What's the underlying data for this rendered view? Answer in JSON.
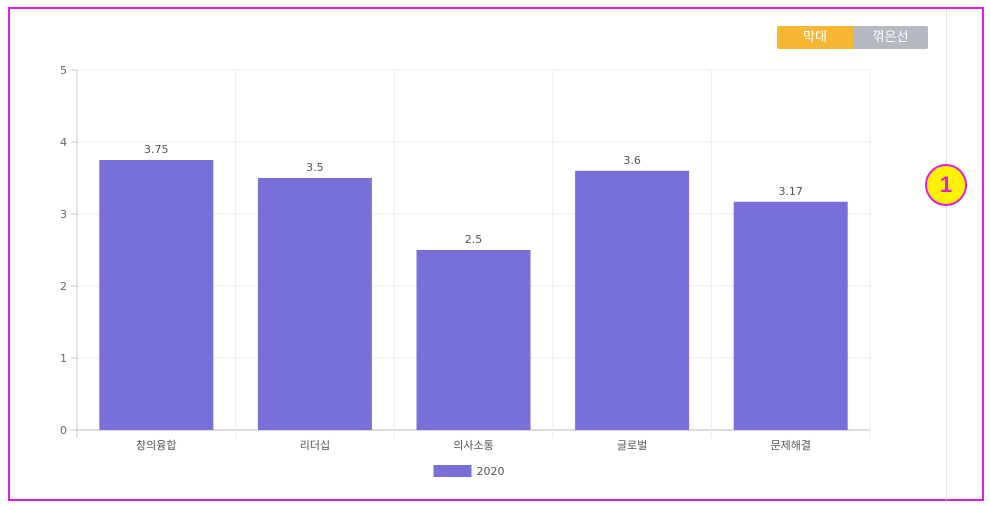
{
  "toggle": {
    "bar_label": "막대",
    "line_label": "꺾은선",
    "active": "bar"
  },
  "annotation_marker": "1",
  "colors": {
    "bar": "#7870d8",
    "bar_button": "#f7b733",
    "line_button": "#b3b8c1",
    "frame": "#e21de0",
    "marker_fill": "#fff200"
  },
  "chart_data": {
    "type": "bar",
    "categories": [
      "창의융합",
      "리더십",
      "의사소통",
      "글로벌",
      "문제해결"
    ],
    "series": [
      {
        "name": "2020",
        "values": [
          3.75,
          3.5,
          2.5,
          3.6,
          3.17
        ]
      }
    ],
    "data_labels": [
      "3.75",
      "3.5",
      "2.5",
      "3.6",
      "3.17"
    ],
    "yticks": [
      "0",
      "1",
      "2",
      "3",
      "4",
      "5"
    ],
    "ylim": [
      0,
      5
    ],
    "grid": true,
    "legend_position": "bottom"
  }
}
